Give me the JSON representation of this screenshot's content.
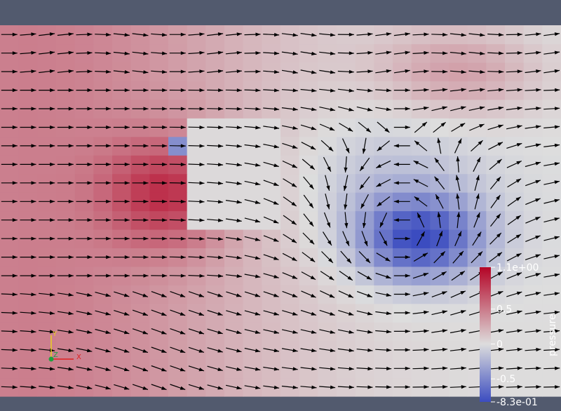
{
  "chart_data": {
    "type": "heatmap",
    "title": "",
    "field": "pressure",
    "vector_field": "velocity",
    "grid": {
      "cols": 30,
      "rows": 20
    },
    "x_range": [
      0,
      30
    ],
    "y_range": [
      0,
      20
    ],
    "pressure_range": [
      -0.83,
      1.1
    ],
    "colormap": [
      "#3b4cc0",
      "#dddddd",
      "#b40426"
    ],
    "colorbar": {
      "title": "pressure",
      "ticks": [
        {
          "value": 1.1,
          "label": "1.1e+00"
        },
        {
          "value": 0.5,
          "label": "0.5"
        },
        {
          "value": 0,
          "label": "0"
        },
        {
          "value": -0.5,
          "label": "-0.5"
        },
        {
          "value": -0.83,
          "label": "-8.3e-01"
        }
      ],
      "placement": "bottom-right"
    },
    "features": {
      "high_pressure_center": [
        8.5,
        10.5
      ],
      "high_pressure_peak": 1.1,
      "low_pressure_center": [
        22.0,
        8.0
      ],
      "low_pressure_peak": -0.83,
      "obstacle_cell": [
        9,
        13
      ],
      "obstacle_band": {
        "x": [
          10,
          14
        ],
        "y": [
          9,
          14
        ]
      }
    },
    "axes_triad": {
      "x_label": "X",
      "y_label": "Y",
      "z_label": "Z"
    }
  },
  "colors": {
    "background": "#525a6e",
    "arrow": "#000000",
    "triad_x": "#e02020",
    "triad_y": "#e8d020",
    "triad_z": "#20a040"
  }
}
